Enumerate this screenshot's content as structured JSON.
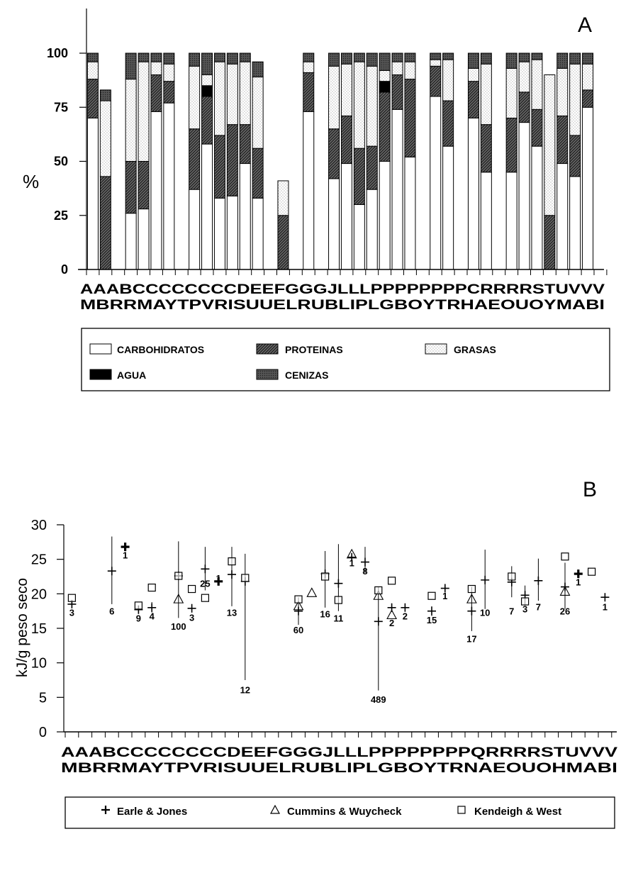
{
  "chart_data": [
    {
      "panel": "A",
      "type": "bar",
      "stacked": true,
      "ylabel": "%",
      "ylim": [
        0,
        100
      ],
      "yticks": [
        "0",
        "25",
        "50",
        "75",
        "100"
      ],
      "categories": [
        "AM",
        "AB",
        "AR",
        "BR",
        "CM",
        "CA",
        "CY",
        "CT",
        "CP",
        "CV",
        "CR",
        "DI",
        "ES",
        "EU",
        "FU",
        "GE",
        "GL",
        "GR",
        "JU",
        "LB",
        "LL",
        "LI",
        "PP",
        "PL",
        "PG",
        "PB",
        "PO",
        "PY",
        "PT",
        "PR",
        "CH",
        "RA",
        "RE",
        "RO",
        "SU",
        "TO",
        "UY",
        "VM",
        "VA",
        "VB",
        "VI"
      ],
      "x_labels_top": "AAABCCCCCCCCDEEFGGGJLLLPPPPPPPPCRRRRSTUVVV",
      "x_labels_bottom": "MBRRMAYTPVRISUUELRUBLIPLGBOYTRHAEOUOYMABI",
      "bars": [
        {
          "x": 1,
          "seg": [
            70,
            18,
            0,
            8,
            4
          ]
        },
        {
          "x": 2,
          "seg": [
            0,
            43,
            0,
            35,
            5
          ]
        },
        {
          "x": 4,
          "seg": [
            26,
            24,
            0,
            38,
            12
          ]
        },
        {
          "x": 5,
          "seg": [
            28,
            22,
            0,
            46,
            4
          ]
        },
        {
          "x": 6,
          "seg": [
            73,
            17,
            0,
            6,
            4
          ]
        },
        {
          "x": 7,
          "seg": [
            77,
            10,
            0,
            8,
            5
          ]
        },
        {
          "x": 9,
          "seg": [
            37,
            28,
            0,
            29,
            6
          ]
        },
        {
          "x": 10,
          "seg": [
            58,
            22,
            5,
            5,
            10
          ]
        },
        {
          "x": 11,
          "seg": [
            33,
            29,
            0,
            34,
            4
          ]
        },
        {
          "x": 12,
          "seg": [
            34,
            33,
            0,
            28,
            5
          ]
        },
        {
          "x": 13,
          "seg": [
            49,
            18,
            0,
            29,
            4
          ]
        },
        {
          "x": 14,
          "seg": [
            33,
            23,
            0,
            33,
            7
          ]
        },
        {
          "x": 16,
          "seg": [
            0,
            25,
            0,
            16,
            0
          ]
        },
        {
          "x": 18,
          "seg": [
            73,
            18,
            0,
            5,
            4
          ]
        },
        {
          "x": 20,
          "seg": [
            42,
            23,
            0,
            29,
            6
          ]
        },
        {
          "x": 21,
          "seg": [
            49,
            22,
            0,
            24,
            5
          ]
        },
        {
          "x": 22,
          "seg": [
            30,
            26,
            0,
            40,
            4
          ]
        },
        {
          "x": 23,
          "seg": [
            37,
            20,
            0,
            37,
            6
          ]
        },
        {
          "x": 24,
          "seg": [
            50,
            32,
            5,
            5,
            8
          ]
        },
        {
          "x": 25,
          "seg": [
            74,
            16,
            0,
            6,
            4
          ]
        },
        {
          "x": 26,
          "seg": [
            52,
            36,
            0,
            8,
            4
          ]
        },
        {
          "x": 28,
          "seg": [
            80,
            14,
            0,
            3,
            3
          ]
        },
        {
          "x": 29,
          "seg": [
            57,
            21,
            0,
            19,
            3
          ]
        },
        {
          "x": 31,
          "seg": [
            70,
            17,
            0,
            6,
            7
          ]
        },
        {
          "x": 32,
          "seg": [
            45,
            22,
            0,
            28,
            5
          ]
        },
        {
          "x": 34,
          "seg": [
            45,
            25,
            0,
            23,
            7
          ]
        },
        {
          "x": 35,
          "seg": [
            68,
            14,
            0,
            14,
            4
          ]
        },
        {
          "x": 36,
          "seg": [
            57,
            17,
            0,
            23,
            3
          ]
        },
        {
          "x": 37,
          "seg": [
            0,
            25,
            0,
            65,
            0
          ]
        },
        {
          "x": 38,
          "seg": [
            49,
            22,
            0,
            22,
            7
          ]
        },
        {
          "x": 39,
          "seg": [
            43,
            19,
            0,
            33,
            5
          ]
        },
        {
          "x": 40,
          "seg": [
            75,
            8,
            0,
            12,
            5
          ]
        }
      ],
      "legend": {
        "carbohidratos": "CARBOHIDRATOS",
        "proteinas": "PROTEINAS",
        "grasas": "GRASAS",
        "agua": "AGUA",
        "cenizas": "CENIZAS"
      }
    },
    {
      "panel": "B",
      "type": "scatter",
      "ylabel": "kJ/g peso seco",
      "ylim": [
        0,
        30
      ],
      "yticks": [
        "0",
        "5",
        "10",
        "15",
        "20",
        "25",
        "30"
      ],
      "x_labels_top": "AAABCCCCCCCCDEEFGGGJLLLPPPPPPPPQRRRRSTUVVV",
      "x_labels_bottom": "MBRRMAYTPVRISUUELRUBLIPLGBOYTRNAEOUOHMABI",
      "series": [
        {
          "name": "Earle & Jones",
          "marker": "plus",
          "points": [
            {
              "x": 1,
              "y": 18.5,
              "lo": 18.0,
              "hi": 19.0
            },
            {
              "x": 4,
              "y": 23.3,
              "lo": 18.5,
              "hi": 28.3
            },
            {
              "x": 5,
              "y": 26.8,
              "bold": true
            },
            {
              "x": 6,
              "y": 17.7,
              "lo": 17.2,
              "hi": 18.3
            },
            {
              "x": 7,
              "y": 18.0,
              "lo": 17.3,
              "hi": 18.8
            },
            {
              "x": 9,
              "y": 22.6,
              "lo": 16.5,
              "hi": 27.6
            },
            {
              "x": 10,
              "y": 17.9,
              "lo": 17.3,
              "hi": 18.5
            },
            {
              "x": 11,
              "y": 23.6,
              "lo": 20.5,
              "hi": 26.8
            },
            {
              "x": 12,
              "y": 21.8,
              "bold": true
            },
            {
              "x": 13,
              "y": 22.8,
              "lo": 18.2,
              "hi": 26.8
            },
            {
              "x": 14,
              "y": 21.8,
              "lo": 7.5,
              "hi": 25.8
            },
            {
              "x": 18,
              "y": 17.5,
              "lo": 15.5,
              "hi": 19.5
            },
            {
              "x": 20,
              "y": 22.9,
              "lo": 18.0,
              "hi": 26.2
            },
            {
              "x": 21,
              "y": 21.5,
              "lo": 17.5,
              "hi": 27.2
            },
            {
              "x": 22,
              "y": 25.3
            },
            {
              "x": 23,
              "y": 24.6,
              "lo": 23.0,
              "hi": 26.8
            },
            {
              "x": 24,
              "y": 16.0,
              "lo": 6.0,
              "hi": 21.0
            },
            {
              "x": 25,
              "y": 18.0,
              "lo": 17.4,
              "hi": 18.6
            },
            {
              "x": 26,
              "y": 18.0,
              "lo": 17.5,
              "hi": 18.5
            },
            {
              "x": 28,
              "y": 17.5,
              "lo": 16.8,
              "hi": 18.2
            },
            {
              "x": 29,
              "y": 20.8
            },
            {
              "x": 31,
              "y": 17.5,
              "lo": 14.6,
              "hi": 21.0
            },
            {
              "x": 32,
              "y": 22.0,
              "lo": 17.8,
              "hi": 26.4
            },
            {
              "x": 34,
              "y": 21.7,
              "lo": 19.5,
              "hi": 24.0
            },
            {
              "x": 35,
              "y": 19.8,
              "lo": 18.3,
              "hi": 21.2
            },
            {
              "x": 36,
              "y": 21.9,
              "lo": 19.0,
              "hi": 25.1
            },
            {
              "x": 38,
              "y": 21.0,
              "lo": 17.8,
              "hi": 24.5
            },
            {
              "x": 39,
              "y": 22.9,
              "bold": true
            },
            {
              "x": 41,
              "y": 19.5,
              "lo": 19.0,
              "hi": 20.0
            }
          ]
        },
        {
          "name": "Cummins & Wuycheck",
          "marker": "triangle",
          "points": [
            {
              "x": 9,
              "y": 19.2
            },
            {
              "x": 18,
              "y": 18.2
            },
            {
              "x": 19,
              "y": 20.1
            },
            {
              "x": 22,
              "y": 25.7
            },
            {
              "x": 24,
              "y": 19.7
            },
            {
              "x": 25,
              "y": 16.9
            },
            {
              "x": 31,
              "y": 19.2
            },
            {
              "x": 38,
              "y": 20.3
            }
          ]
        },
        {
          "name": "Kendeigh & West",
          "marker": "square",
          "points": [
            {
              "x": 1,
              "y": 19.4
            },
            {
              "x": 6,
              "y": 18.3
            },
            {
              "x": 7,
              "y": 20.9
            },
            {
              "x": 9,
              "y": 22.6
            },
            {
              "x": 10,
              "y": 20.7
            },
            {
              "x": 11,
              "y": 19.4
            },
            {
              "x": 13,
              "y": 24.7
            },
            {
              "x": 14,
              "y": 22.3
            },
            {
              "x": 18,
              "y": 19.2
            },
            {
              "x": 20,
              "y": 22.5
            },
            {
              "x": 21,
              "y": 19.1
            },
            {
              "x": 24,
              "y": 20.5
            },
            {
              "x": 25,
              "y": 21.9
            },
            {
              "x": 28,
              "y": 19.7
            },
            {
              "x": 31,
              "y": 20.7
            },
            {
              "x": 34,
              "y": 22.5
            },
            {
              "x": 35,
              "y": 18.9
            },
            {
              "x": 38,
              "y": 25.4
            },
            {
              "x": 40,
              "y": 23.2
            }
          ]
        }
      ],
      "sample_labels": [
        {
          "x": 1,
          "y": 16.8,
          "text": "3"
        },
        {
          "x": 4,
          "y": 17.0,
          "text": "6"
        },
        {
          "x": 5,
          "y": 25.1,
          "text": "1"
        },
        {
          "x": 6,
          "y": 16.0,
          "text": "9"
        },
        {
          "x": 7,
          "y": 16.3,
          "text": "4"
        },
        {
          "x": 9,
          "y": 14.8,
          "text": "100"
        },
        {
          "x": 10,
          "y": 16.1,
          "text": "3"
        },
        {
          "x": 11,
          "y": 21.0,
          "text": "25"
        },
        {
          "x": 12,
          "y": 21.8,
          "text": "1"
        },
        {
          "x": 13,
          "y": 16.8,
          "text": "13"
        },
        {
          "x": 14,
          "y": 5.6,
          "text": "12"
        },
        {
          "x": 18,
          "y": 14.3,
          "text": "60"
        },
        {
          "x": 20,
          "y": 16.6,
          "text": "16"
        },
        {
          "x": 21,
          "y": 16.0,
          "text": "11"
        },
        {
          "x": 22,
          "y": 24.0,
          "text": "1"
        },
        {
          "x": 23,
          "y": 22.8,
          "text": "8"
        },
        {
          "x": 24,
          "y": 4.2,
          "text": "489"
        },
        {
          "x": 25,
          "y": 15.3,
          "text": "2"
        },
        {
          "x": 26,
          "y": 16.3,
          "text": "2"
        },
        {
          "x": 28,
          "y": 15.7,
          "text": "15"
        },
        {
          "x": 29,
          "y": 19.2,
          "text": "1"
        },
        {
          "x": 31,
          "y": 13.0,
          "text": "17"
        },
        {
          "x": 32,
          "y": 16.8,
          "text": "10"
        },
        {
          "x": 34,
          "y": 17.0,
          "text": "7"
        },
        {
          "x": 35,
          "y": 17.3,
          "text": "3"
        },
        {
          "x": 36,
          "y": 17.6,
          "text": "7"
        },
        {
          "x": 38,
          "y": 17.0,
          "text": "26"
        },
        {
          "x": 39,
          "y": 21.2,
          "text": "1"
        },
        {
          "x": 41,
          "y": 17.6,
          "text": "1"
        }
      ],
      "legend": {
        "earle": "Earle & Jones",
        "cummins": "Cummins & Wuycheck",
        "kendeigh": "Kendeigh & West"
      }
    }
  ],
  "panel_a_letter": "A",
  "panel_b_letter": "B"
}
